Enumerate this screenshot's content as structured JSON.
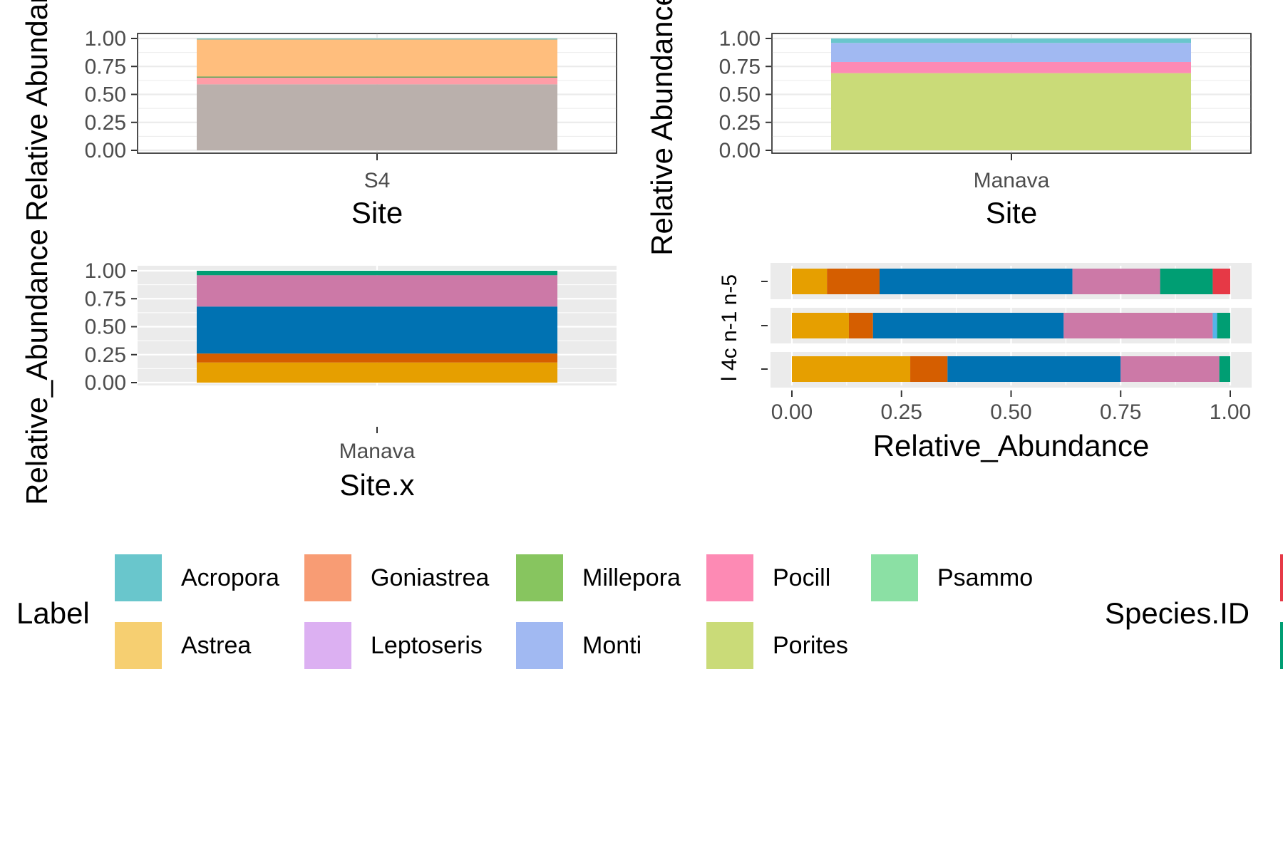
{
  "chart_data": [
    {
      "id": "p1",
      "type": "bar",
      "stacked": true,
      "orientation": "vertical",
      "theme": "bw",
      "categories": [
        "S4"
      ],
      "xlabel": "Site",
      "ylabel": "Relative Abundance",
      "ylim": [
        0,
        1
      ],
      "ticks": [
        "0.00",
        "0.25",
        "0.50",
        "0.75",
        "1.00"
      ],
      "tick_values": [
        0,
        0.25,
        0.5,
        0.75,
        1
      ],
      "series": [
        {
          "color": "#BAB0AC",
          "values": [
            0.59
          ]
        },
        {
          "color": "#FF9DA7",
          "values": [
            0.06
          ]
        },
        {
          "color": "#59A14F",
          "values": [
            0.01
          ]
        },
        {
          "color": "#FFBE7D",
          "values": [
            0.33
          ]
        },
        {
          "color": "#76B7B2",
          "values": [
            0.01
          ]
        }
      ]
    },
    {
      "id": "p2",
      "type": "bar",
      "stacked": true,
      "orientation": "vertical",
      "theme": "bw",
      "categories": [
        "Manava"
      ],
      "xlabel": "Site",
      "ylabel": "Relative Abundance",
      "ylim": [
        0,
        1
      ],
      "ticks": [
        "0.00",
        "0.25",
        "0.50",
        "0.75",
        "1.00"
      ],
      "tick_values": [
        0,
        0.25,
        0.5,
        0.75,
        1
      ],
      "series": [
        {
          "color": "#CADB78",
          "values": [
            0.69
          ]
        },
        {
          "color": "#FD8AB4",
          "values": [
            0.1
          ]
        },
        {
          "color": "#A1B9F2",
          "values": [
            0.17
          ]
        },
        {
          "color": "#69C6CC",
          "values": [
            0.04
          ]
        }
      ]
    },
    {
      "id": "p3",
      "type": "bar",
      "stacked": true,
      "orientation": "vertical",
      "theme": "grey",
      "categories": [
        "Manava"
      ],
      "xlabel": "Site.x",
      "ylabel": "Relative_Abundance",
      "ylim": [
        0,
        1
      ],
      "ticks": [
        "0.00",
        "0.25",
        "0.50",
        "0.75",
        "1.00"
      ],
      "tick_values": [
        0,
        0.25,
        0.5,
        0.75,
        1
      ],
      "series": [
        {
          "color": "#E69F00",
          "values": [
            0.18
          ]
        },
        {
          "color": "#D55E00",
          "values": [
            0.08
          ]
        },
        {
          "color": "#0072B2",
          "values": [
            0.42
          ]
        },
        {
          "color": "#CC79A7",
          "values": [
            0.28
          ]
        },
        {
          "color": "#009E73",
          "values": [
            0.04
          ]
        }
      ]
    },
    {
      "id": "p4",
      "type": "bar",
      "stacked": true,
      "orientation": "horizontal",
      "theme": "grey",
      "categories": [
        "",
        "",
        ""
      ],
      "xlabel": "Relative_Abundance",
      "ylabel": "l 4c n-1 n-5",
      "xlim": [
        0,
        1
      ],
      "ticks": [
        "0.00",
        "0.25",
        "0.50",
        "0.75",
        "1.00"
      ],
      "tick_values": [
        0,
        0.25,
        0.5,
        0.75,
        1
      ],
      "series": [
        {
          "color": "#E69F00",
          "values": [
            0.08,
            0.13,
            0.27
          ]
        },
        {
          "color": "#D55E00",
          "values": [
            0.12,
            0.055,
            0.085
          ]
        },
        {
          "color": "#0072B2",
          "values": [
            0.44,
            0.435,
            0.395
          ]
        },
        {
          "color": "#CC79A7",
          "values": [
            0.2,
            0.34,
            0.225
          ]
        },
        {
          "color": "#56B4E9",
          "values": [
            0,
            0.01,
            0
          ]
        },
        {
          "color": "#009E73",
          "values": [
            0.12,
            0.03,
            0.025
          ]
        },
        {
          "color": "#E63946",
          "values": [
            0.04,
            0,
            0
          ]
        }
      ]
    }
  ],
  "legend": {
    "title": "Label",
    "items": [
      {
        "label": "Acropora",
        "color": "#69C6CC"
      },
      {
        "label": "Astrea",
        "color": "#F6CF71"
      },
      {
        "label": "Goniastrea",
        "color": "#F89C74"
      },
      {
        "label": "Leptoseris",
        "color": "#DCB0F2"
      },
      {
        "label": "Millepora",
        "color": "#87C55F"
      },
      {
        "label": "Monti",
        "color": "#A1B9F2"
      },
      {
        "label": "Pocill",
        "color": "#FD8AB4"
      },
      {
        "label": "Porites",
        "color": "#CADB78"
      },
      {
        "label": "Psammo",
        "color": "#8BE0A4"
      }
    ]
  },
  "legend2": {
    "title": "Species.ID",
    "items": [
      {
        "color": "#E63946"
      },
      {
        "color": "#009E73"
      }
    ]
  }
}
